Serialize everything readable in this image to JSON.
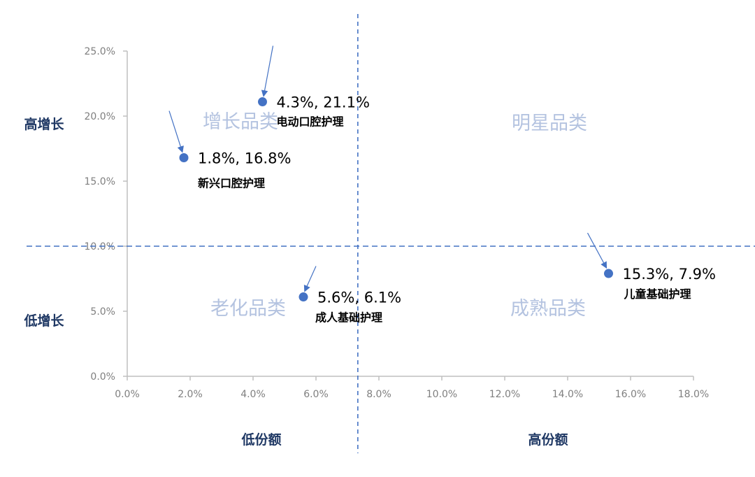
{
  "chart_data": {
    "type": "scatter",
    "title": "",
    "xlabel": "",
    "ylabel": "",
    "xlim": [
      0,
      18
    ],
    "ylim": [
      0,
      25
    ],
    "x_ticks": [
      "0.0%",
      "2.0%",
      "4.0%",
      "6.0%",
      "8.0%",
      "10.0%",
      "12.0%",
      "14.0%",
      "16.0%",
      "18.0%"
    ],
    "y_ticks": [
      "0.0%",
      "5.0%",
      "10.0%",
      "15.0%",
      "20.0%",
      "25.0%"
    ],
    "grid": false,
    "points": [
      {
        "name": "新兴口腔护理",
        "x": 1.8,
        "y": 16.8,
        "label": "1.8%, 16.8%"
      },
      {
        "name": "电动口腔护理",
        "x": 4.3,
        "y": 21.1,
        "label": "4.3%, 21.1%"
      },
      {
        "name": "成人基础护理",
        "x": 5.6,
        "y": 6.1,
        "label": "5.6%, 6.1%"
      },
      {
        "name": "儿童基础护理",
        "x": 15.3,
        "y": 7.9,
        "label": "15.3%, 7.9%"
      }
    ],
    "reference_lines": {
      "x": 7.33,
      "y": 10.0,
      "style": "dashed"
    },
    "quadrants": {
      "top_left": "增长品类",
      "top_right": "明星品类",
      "bottom_left": "老化品类",
      "bottom_right": "成熟品类"
    },
    "y_categories": {
      "high": "高增长",
      "low": "低增长"
    },
    "x_categories": {
      "low": "低份额",
      "high": "高份额"
    },
    "colors": {
      "point": "#4472c4",
      "reference_line": "#4472c4",
      "quadrant_text": "#b4c3e0",
      "category_text": "#1f3864",
      "axis": "#bfbfbf",
      "tick_text": "#7f7f7f"
    }
  }
}
